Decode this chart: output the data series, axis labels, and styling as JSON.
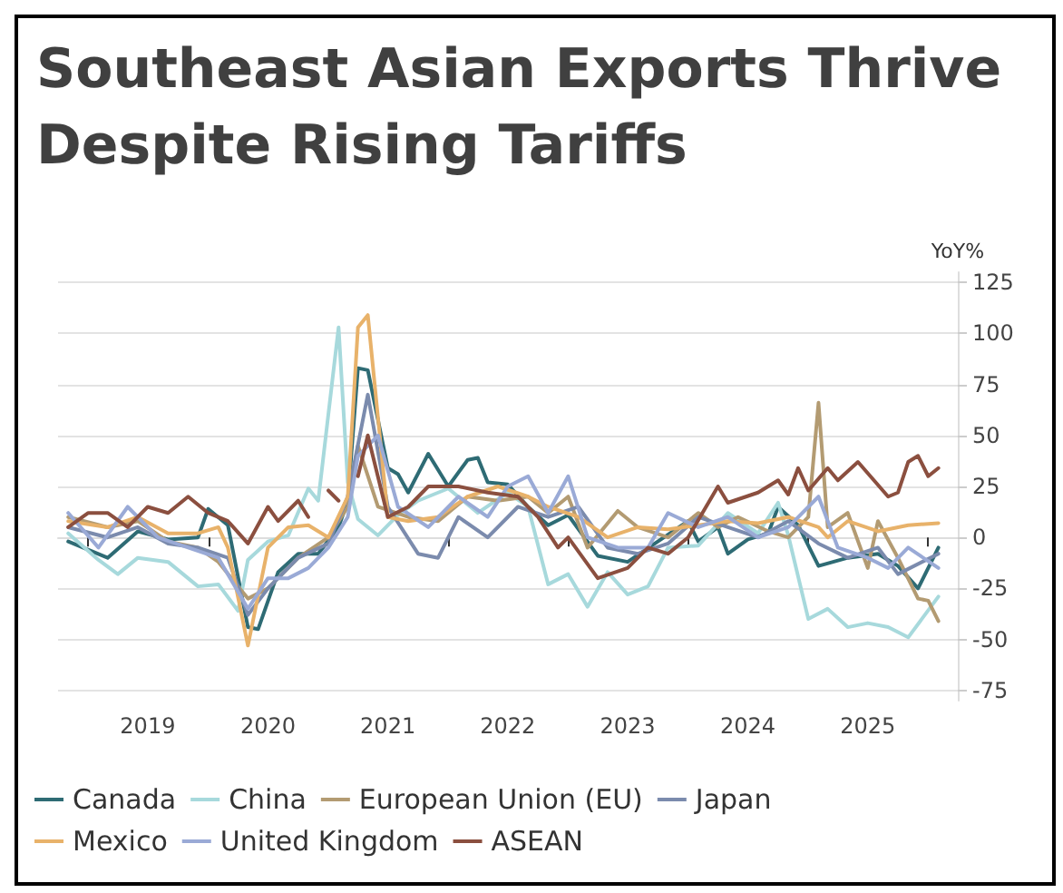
{
  "chart_data": {
    "type": "line",
    "title": "Southeast Asian Exports Thrive Despite Rising Tariffs",
    "ylabel": "YoY%",
    "xlim": [
      "2018-10",
      "2026-04"
    ],
    "xticks": [
      {
        "value": "2019-01",
        "label": null
      },
      {
        "value": "2019-07",
        "label": "2019"
      },
      {
        "value": "2020-01",
        "label": null
      },
      {
        "value": "2020-07",
        "label": "2020"
      },
      {
        "value": "2021-01",
        "label": null
      },
      {
        "value": "2021-07",
        "label": "2021"
      },
      {
        "value": "2022-01",
        "label": null
      },
      {
        "value": "2022-07",
        "label": "2022"
      },
      {
        "value": "2023-01",
        "label": null
      },
      {
        "value": "2023-07",
        "label": "2023"
      },
      {
        "value": "2024-01",
        "label": null
      },
      {
        "value": "2024-07",
        "label": "2024"
      },
      {
        "value": "2025-01",
        "label": null
      },
      {
        "value": "2025-07",
        "label": "2025"
      },
      {
        "value": "2026-01",
        "label": null
      }
    ],
    "ylim": [
      -80,
      130
    ],
    "yticks": [
      -75,
      -50,
      -25,
      0,
      25,
      50,
      75,
      100,
      125
    ],
    "grid": "y",
    "legend": "bottom",
    "marker": "none",
    "line_style": "solid",
    "series": [
      {
        "name": "Canada",
        "color": "#2e6b74",
        "x": [
          "2018-11",
          "2019-03",
          "2019-06",
          "2019-09",
          "2019-12",
          "2020-01",
          "2020-03",
          "2020-05",
          "2020-06",
          "2020-08",
          "2020-10",
          "2020-12",
          "2021-02",
          "2021-03",
          "2021-04",
          "2021-05",
          "2021-07",
          "2021-08",
          "2021-09",
          "2021-11",
          "2022-01",
          "2022-03",
          "2022-04",
          "2022-05",
          "2022-07",
          "2022-09",
          "2022-11",
          "2023-01",
          "2023-04",
          "2023-07",
          "2023-10",
          "2024-01",
          "2024-02",
          "2024-04",
          "2024-05",
          "2024-07",
          "2024-09",
          "2024-10",
          "2024-12",
          "2025-02",
          "2025-05",
          "2025-08",
          "2025-10",
          "2025-12",
          "2026-02"
        ],
        "values": [
          -2,
          -10,
          3,
          -1,
          0,
          14,
          6,
          -44,
          -45,
          -17,
          -8,
          -8,
          5,
          18,
          83,
          82,
          34,
          31,
          22,
          41,
          25,
          38,
          39,
          27,
          26,
          15,
          6,
          11,
          -9,
          -12,
          -2,
          8,
          -2,
          5,
          -8,
          -1,
          2,
          15,
          6,
          -14,
          -10,
          -8,
          -14,
          -25,
          -5
        ]
      },
      {
        "name": "China",
        "color": "#a7d9dc",
        "x": [
          "2018-11",
          "2019-02",
          "2019-04",
          "2019-06",
          "2019-09",
          "2019-12",
          "2020-02",
          "2020-04",
          "2020-05",
          "2020-07",
          "2020-09",
          "2020-11",
          "2020-12",
          "2021-02",
          "2021-03",
          "2021-04",
          "2021-06",
          "2021-08",
          "2021-10",
          "2022-01",
          "2022-04",
          "2022-07",
          "2022-09",
          "2022-11",
          "2023-01",
          "2023-03",
          "2023-05",
          "2023-07",
          "2023-09",
          "2023-11",
          "2024-02",
          "2024-05",
          "2024-08",
          "2024-10",
          "2024-11",
          "2025-01",
          "2025-03",
          "2025-05",
          "2025-07",
          "2025-09",
          "2025-11",
          "2026-02"
        ],
        "values": [
          2,
          -11,
          -18,
          -10,
          -12,
          -24,
          -23,
          -36,
          -11,
          -2,
          1,
          24,
          18,
          103,
          27,
          9,
          1,
          11,
          18,
          24,
          12,
          22,
          15,
          -23,
          -18,
          -34,
          -17,
          -28,
          -24,
          -5,
          -4,
          12,
          2,
          17,
          1,
          -40,
          -35,
          -44,
          -42,
          -44,
          -49,
          -29
        ]
      },
      {
        "name": "European Union (EU)",
        "color": "#b39b72",
        "x": [
          "2018-11",
          "2019-03",
          "2019-06",
          "2019-09",
          "2019-12",
          "2020-02",
          "2020-05",
          "2020-07",
          "2020-10",
          "2021-01",
          "2021-03",
          "2021-04",
          "2021-06",
          "2021-09",
          "2021-12",
          "2022-03",
          "2022-06",
          "2022-09",
          "2022-11",
          "2023-01",
          "2023-03",
          "2023-06",
          "2023-08",
          "2023-11",
          "2024-02",
          "2024-04",
          "2024-06",
          "2024-09",
          "2024-11",
          "2025-01",
          "2025-02",
          "2025-03",
          "2025-05",
          "2025-07",
          "2025-08",
          "2025-10",
          "2025-12",
          "2026-01",
          "2026-02"
        ],
        "values": [
          10,
          5,
          8,
          -2,
          -5,
          -12,
          -30,
          -25,
          -10,
          0,
          15,
          45,
          15,
          10,
          8,
          20,
          18,
          20,
          12,
          20,
          -5,
          13,
          5,
          0,
          12,
          5,
          10,
          3,
          0,
          10,
          66,
          5,
          12,
          -15,
          8,
          -10,
          -30,
          -31,
          -41
        ]
      },
      {
        "name": "Japan",
        "color": "#7b8bad",
        "x": [
          "2018-11",
          "2019-03",
          "2019-06",
          "2019-09",
          "2019-12",
          "2020-03",
          "2020-05",
          "2020-07",
          "2020-10",
          "2021-01",
          "2021-03",
          "2021-05",
          "2021-07",
          "2021-10",
          "2021-12",
          "2022-02",
          "2022-05",
          "2022-08",
          "2022-11",
          "2023-02",
          "2023-05",
          "2023-08",
          "2023-11",
          "2024-02",
          "2024-05",
          "2024-08",
          "2024-11",
          "2025-02",
          "2025-05",
          "2025-08",
          "2025-10",
          "2026-02"
        ],
        "values": [
          5,
          0,
          5,
          -3,
          -5,
          -10,
          -38,
          -25,
          -10,
          -3,
          20,
          70,
          15,
          -8,
          -10,
          10,
          0,
          15,
          10,
          15,
          -5,
          -8,
          -3,
          10,
          5,
          0,
          8,
          -3,
          -10,
          -5,
          -18,
          -8
        ]
      },
      {
        "name": "Mexico",
        "color": "#e8b26a",
        "x": [
          "2018-11",
          "2019-03",
          "2019-06",
          "2019-09",
          "2019-12",
          "2020-02",
          "2020-03",
          "2020-05",
          "2020-07",
          "2020-09",
          "2020-11",
          "2021-01",
          "2021-03",
          "2021-04",
          "2021-05",
          "2021-07",
          "2021-09",
          "2021-12",
          "2022-03",
          "2022-06",
          "2022-09",
          "2022-11",
          "2023-02",
          "2023-05",
          "2023-08",
          "2023-11",
          "2024-02",
          "2024-05",
          "2024-08",
          "2024-11",
          "2025-02",
          "2025-03",
          "2025-05",
          "2025-08",
          "2025-11",
          "2026-02"
        ],
        "values": [
          8,
          5,
          10,
          2,
          2,
          5,
          -5,
          -53,
          -5,
          5,
          6,
          0,
          20,
          103,
          109,
          10,
          8,
          10,
          20,
          25,
          20,
          15,
          10,
          0,
          5,
          4,
          6,
          8,
          7,
          10,
          5,
          0,
          8,
          3,
          6,
          7
        ]
      },
      {
        "name": "United Kingdom",
        "color": "#9aaad6",
        "x": [
          "2018-11",
          "2019-02",
          "2019-05",
          "2019-08",
          "2019-11",
          "2020-02",
          "2020-05",
          "2020-07",
          "2020-09",
          "2020-11",
          "2021-01",
          "2021-03",
          "2021-04",
          "2021-06",
          "2021-08",
          "2021-11",
          "2022-02",
          "2022-05",
          "2022-07",
          "2022-09",
          "2022-11",
          "2023-01",
          "2023-03",
          "2023-06",
          "2023-09",
          "2023-11",
          "2024-02",
          "2024-05",
          "2024-08",
          "2024-11",
          "2025-02",
          "2025-04",
          "2025-07",
          "2025-09",
          "2025-11",
          "2026-02"
        ],
        "values": [
          12,
          -5,
          15,
          0,
          -5,
          -10,
          -35,
          -20,
          -20,
          -15,
          -5,
          10,
          40,
          50,
          15,
          5,
          20,
          10,
          25,
          30,
          12,
          30,
          0,
          -5,
          -5,
          12,
          5,
          10,
          0,
          5,
          20,
          -5,
          -10,
          -15,
          -5,
          -15
        ]
      },
      {
        "name": "ASEAN",
        "color": "#8b4f3f",
        "x": [
          "2018-11",
          "2019-01",
          "2019-03",
          "2019-05",
          "2019-07",
          "2019-09",
          "2019-11",
          "2020-01",
          "2020-03",
          "2020-05",
          "2020-07",
          "2020-08",
          "2020-10",
          "2020-11",
          "2020-12",
          "2021-01",
          "2021-02",
          "2021-03",
          "2021-04",
          "2021-05",
          "2021-07",
          "2021-09",
          "2021-11",
          "2022-02",
          "2022-05",
          "2022-08",
          "2022-10",
          "2022-12",
          "2023-01",
          "2023-04",
          "2023-07",
          "2023-09",
          "2023-11",
          "2024-01",
          "2024-04",
          "2024-05",
          "2024-08",
          "2024-10",
          "2024-11",
          "2024-12",
          "2025-01",
          "2025-03",
          "2025-04",
          "2025-06",
          "2025-09",
          "2025-10",
          "2025-11",
          "2025-12",
          "2026-01",
          "2026-02"
        ],
        "values": [
          5,
          12,
          12,
          5,
          15,
          12,
          20,
          12,
          8,
          -3,
          15,
          8,
          18,
          10,
          null,
          23,
          18,
          null,
          30,
          50,
          10,
          15,
          25,
          25,
          22,
          20,
          10,
          -5,
          0,
          -20,
          -15,
          -5,
          -8,
          0,
          25,
          17,
          22,
          28,
          21,
          34,
          23,
          34,
          28,
          37,
          20,
          22,
          37,
          40,
          30,
          34
        ]
      }
    ]
  }
}
